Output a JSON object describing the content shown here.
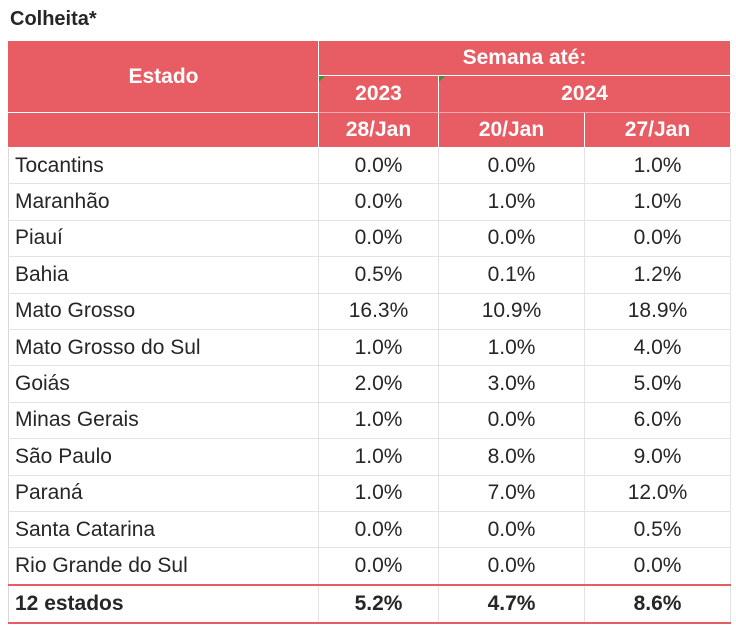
{
  "title": "Colheita*",
  "header": {
    "state_label": "Estado",
    "group_label": "Semana até:",
    "years": [
      "2023",
      "2024"
    ],
    "weeks": [
      "28/Jan",
      "20/Jan",
      "27/Jan"
    ]
  },
  "rows": [
    {
      "state": "Tocantins",
      "values": [
        "0.0%",
        "0.0%",
        "1.0%"
      ]
    },
    {
      "state": "Maranhão",
      "values": [
        "0.0%",
        "1.0%",
        "1.0%"
      ]
    },
    {
      "state": "Piauí",
      "values": [
        "0.0%",
        "0.0%",
        "0.0%"
      ]
    },
    {
      "state": "Bahia",
      "values": [
        "0.5%",
        "0.1%",
        "1.2%"
      ]
    },
    {
      "state": "Mato Grosso",
      "values": [
        "16.3%",
        "10.9%",
        "18.9%"
      ]
    },
    {
      "state": "Mato Grosso do Sul",
      "values": [
        "1.0%",
        "1.0%",
        "4.0%"
      ]
    },
    {
      "state": "Goiás",
      "values": [
        "2.0%",
        "3.0%",
        "5.0%"
      ]
    },
    {
      "state": "Minas Gerais",
      "values": [
        "1.0%",
        "0.0%",
        "6.0%"
      ]
    },
    {
      "state": "São Paulo",
      "values": [
        "1.0%",
        "8.0%",
        "9.0%"
      ]
    },
    {
      "state": "Paraná",
      "values": [
        "1.0%",
        "7.0%",
        "12.0%"
      ]
    },
    {
      "state": "Santa Catarina",
      "values": [
        "0.0%",
        "0.0%",
        "0.5%"
      ]
    },
    {
      "state": "Rio Grande do Sul",
      "values": [
        "0.0%",
        "0.0%",
        "0.0%"
      ]
    }
  ],
  "total": {
    "state": "12 estados",
    "values": [
      "5.2%",
      "4.7%",
      "8.6%"
    ]
  },
  "colors": {
    "header_bg": "#e85c63",
    "header_text": "#ffffff",
    "corner_marker": "#2e9b33"
  }
}
